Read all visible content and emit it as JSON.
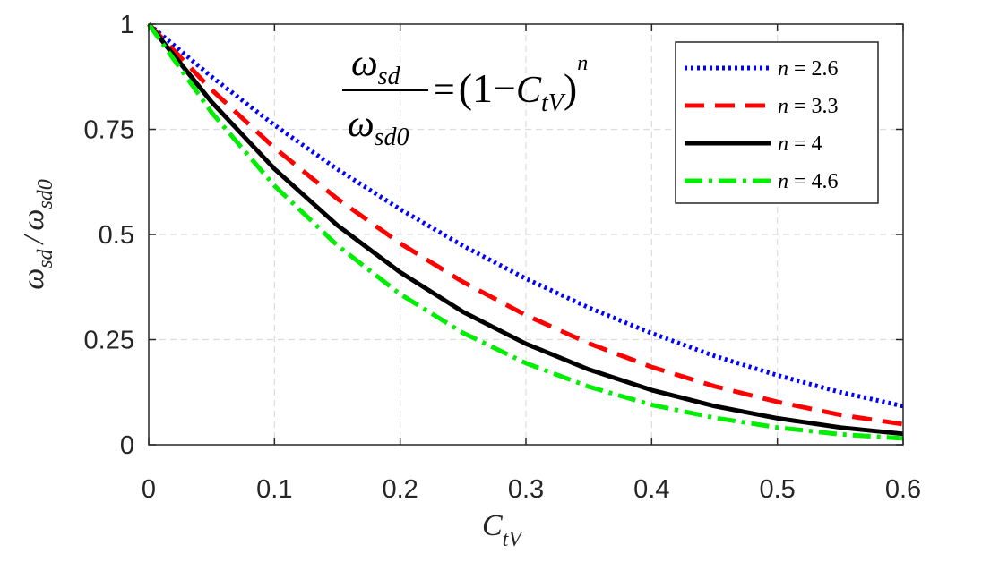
{
  "chart_data": {
    "type": "line",
    "title": "",
    "xlabel": {
      "main": "C",
      "sub": "tV"
    },
    "ylabel": {
      "num_main": "ω",
      "num_sub": "sd",
      "slash": "/",
      "den_main": "ω",
      "den_sub": "sd0"
    },
    "xlim": [
      0,
      0.6
    ],
    "ylim": [
      0,
      1
    ],
    "xticks": [
      0,
      0.1,
      0.2,
      0.3,
      0.4,
      0.5,
      0.6
    ],
    "xtick_labels": [
      "0",
      "0.1",
      "0.2",
      "0.3",
      "0.4",
      "0.5",
      "0.6"
    ],
    "yticks": [
      0,
      0.25,
      0.5,
      0.75,
      1
    ],
    "ytick_labels": [
      "0",
      "0.25",
      "0.5",
      "0.75",
      "1"
    ],
    "grid": true,
    "legend_position": "top-right",
    "formula": {
      "num_main": "ω",
      "num_sub": "sd",
      "den_main": "ω",
      "den_sub": "sd0",
      "equals": "=",
      "rhs_open": "(1−",
      "rhs_c": "C",
      "rhs_sub": "tV",
      "rhs_close": ")",
      "exponent": "n"
    },
    "x": [
      0,
      0.05,
      0.1,
      0.15,
      0.2,
      0.25,
      0.3,
      0.35,
      0.4,
      0.45,
      0.5,
      0.55,
      0.6
    ],
    "series": [
      {
        "legend_var": "n",
        "legend_value": " = 2.6",
        "n": 2.6,
        "color": "#0000ff",
        "style": "dotted",
        "values": [
          1,
          0.875,
          0.76,
          0.655,
          0.56,
          0.473,
          0.395,
          0.326,
          0.265,
          0.211,
          0.165,
          0.125,
          0.092
        ]
      },
      {
        "legend_var": "n",
        "legend_value": " = 3.3",
        "n": 3.3,
        "color": "#ff0000",
        "style": "dashed",
        "values": [
          1,
          0.844,
          0.706,
          0.585,
          0.479,
          0.387,
          0.308,
          0.241,
          0.185,
          0.139,
          0.102,
          0.071,
          0.049
        ]
      },
      {
        "legend_var": "n",
        "legend_value": " = 4",
        "n": 4,
        "color": "#000000",
        "style": "solid",
        "values": [
          1,
          0.815,
          0.656,
          0.522,
          0.41,
          0.316,
          0.24,
          0.179,
          0.13,
          0.092,
          0.063,
          0.041,
          0.026
        ]
      },
      {
        "legend_var": "n",
        "legend_value": " = 4.6",
        "n": 4.6,
        "color": "#00ee00",
        "style": "dashdot",
        "values": [
          1,
          0.79,
          0.616,
          0.474,
          0.358,
          0.266,
          0.194,
          0.138,
          0.095,
          0.064,
          0.041,
          0.025,
          0.015
        ]
      }
    ]
  }
}
